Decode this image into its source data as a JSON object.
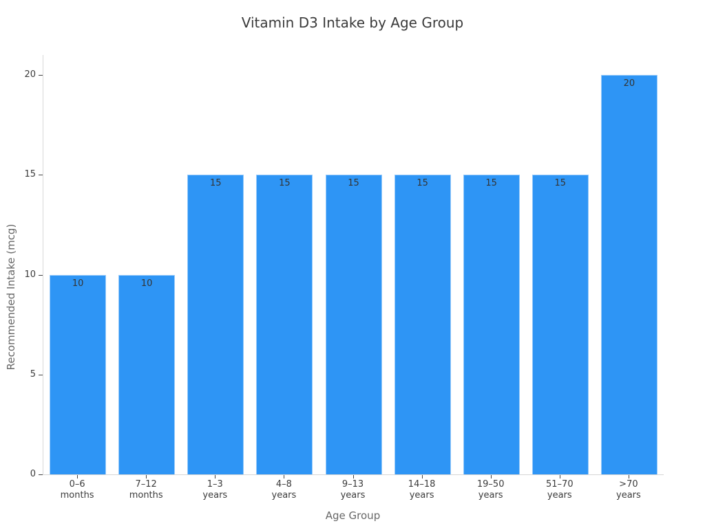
{
  "chart_data": {
    "type": "bar",
    "title": "Vitamin D3 Intake by Age Group",
    "xlabel": "Age Group",
    "ylabel": "Recommended Intake (mcg)",
    "categories": [
      [
        "0–6",
        "months"
      ],
      [
        "7–12",
        "months"
      ],
      [
        "1–3",
        "years"
      ],
      [
        "4–8",
        "years"
      ],
      [
        "9–13",
        "years"
      ],
      [
        "14–18",
        "years"
      ],
      [
        "19–50",
        "years"
      ],
      [
        "51–70",
        "years"
      ],
      [
        ">70",
        "years"
      ]
    ],
    "values": [
      10,
      10,
      15,
      15,
      15,
      15,
      15,
      15,
      20
    ],
    "yticks": [
      0,
      5,
      10,
      15,
      20
    ],
    "ylim": [
      0,
      21
    ],
    "grid": false,
    "legend": null,
    "colors": {
      "background": "#ffffff",
      "bar": "#2E95F5",
      "spine": "#d6d6d6",
      "tick": "#404040",
      "tick_label": "#3a3a3a",
      "axis_label": "#666666",
      "title": "#3a3a3a",
      "value_label": "#333333"
    }
  }
}
